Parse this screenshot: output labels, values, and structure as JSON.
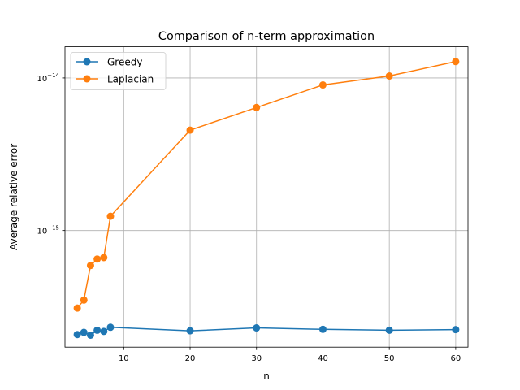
{
  "chart_data": {
    "type": "line",
    "title": "Comparison of n-term approximation",
    "xlabel": "n",
    "ylabel": "Average relative error",
    "x_ticks": [
      10,
      20,
      30,
      40,
      50,
      60
    ],
    "x_tick_labels": [
      "10",
      "20",
      "30",
      "40",
      "50",
      "60"
    ],
    "y_scale": "log",
    "y_ticks": [
      1e-15,
      1e-14
    ],
    "y_tick_labels": [
      {
        "base": "10",
        "exp": "−15"
      },
      {
        "base": "10",
        "exp": "−14"
      }
    ],
    "xlim": [
      1.15,
      61.85
    ],
    "ylim": [
      1.72e-16,
      1.6e-14
    ],
    "grid": true,
    "legend_position": "top-left",
    "series": [
      {
        "name": "Greedy",
        "color": "#1f77b4",
        "marker": "circle",
        "x": [
          3,
          4,
          5,
          6,
          7,
          8,
          20,
          30,
          40,
          50,
          60
        ],
        "y": [
          2.08e-16,
          2.15e-16,
          2.06e-16,
          2.22e-16,
          2.18e-16,
          2.32e-16,
          2.2e-16,
          2.3e-16,
          2.25e-16,
          2.22e-16,
          2.24e-16
        ]
      },
      {
        "name": "Laplacian",
        "color": "#ff7f0e",
        "marker": "circle",
        "x": [
          3,
          4,
          5,
          6,
          7,
          8,
          20,
          30,
          40,
          50,
          60
        ],
        "y": [
          3.1e-16,
          3.5e-16,
          5.9e-16,
          6.5e-16,
          6.65e-16,
          1.24e-15,
          4.55e-15,
          6.4e-15,
          9e-15,
          1.03e-14,
          1.28e-14
        ]
      }
    ]
  }
}
